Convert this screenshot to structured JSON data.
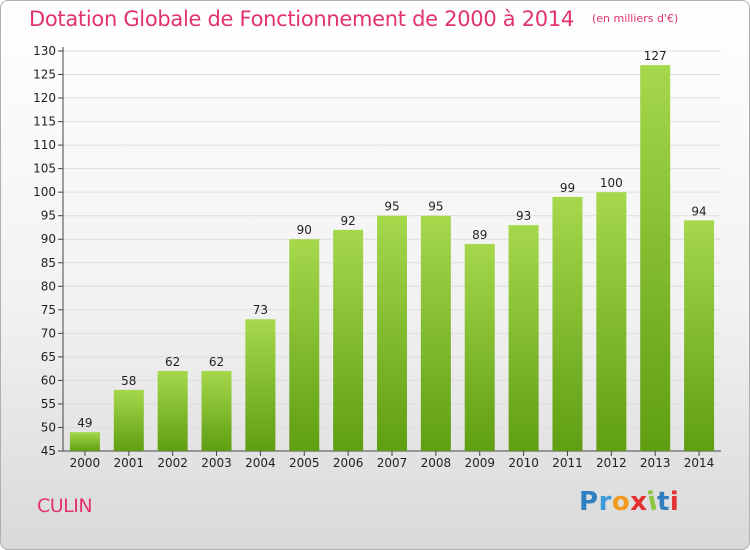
{
  "header": {
    "title": "Dotation Globale de Fonctionnement de 2000 à 2014",
    "subtitle": "(en milliers d'€)"
  },
  "footer": {
    "commune": "CULIN",
    "logo_text": "Proxiti"
  },
  "colors": {
    "accent": "#e2336e",
    "bar_light": "#a6d84c",
    "bar_dark": "#5f9e12",
    "grid": "#dddddd",
    "logo_letters": [
      "#2f7fc1",
      "#3a9ad9",
      "#f29a1f",
      "#e23030",
      "#8cc63f",
      "#2f7fc1",
      "#e23030"
    ]
  },
  "chart_data": {
    "type": "bar",
    "title": "Dotation Globale de Fonctionnement de 2000 à 2014",
    "subtitle": "(en milliers d'€)",
    "categories": [
      "2000",
      "2001",
      "2002",
      "2003",
      "2004",
      "2005",
      "2006",
      "2007",
      "2008",
      "2009",
      "2010",
      "2011",
      "2012",
      "2013",
      "2014"
    ],
    "values": [
      49,
      58,
      62,
      62,
      73,
      90,
      92,
      95,
      95,
      89,
      93,
      99,
      100,
      127,
      94
    ],
    "ylim": [
      45,
      130
    ],
    "ytick_step": 5,
    "grid": true,
    "legend": "none"
  }
}
